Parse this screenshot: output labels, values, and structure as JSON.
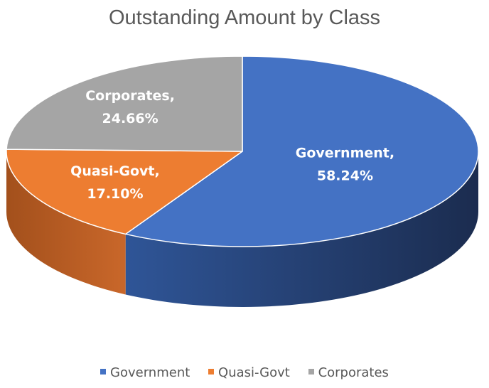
{
  "chart_data": {
    "type": "pie",
    "title": "Outstanding Amount by Class",
    "categories": [
      "Government",
      "Quasi-Govt",
      "Corporates"
    ],
    "values": [
      58.24,
      17.1,
      24.66
    ],
    "data_labels": [
      [
        "Government,",
        "58.24%"
      ],
      [
        "Quasi-Govt,",
        "17.10%"
      ],
      [
        "Corporates,",
        "24.66%"
      ]
    ],
    "legend": {
      "position": "bottom",
      "entries": [
        "Government",
        "Quasi-Govt",
        "Corporates"
      ]
    },
    "colors": [
      "#4472C4",
      "#ED7D31",
      "#A5A5A5"
    ],
    "style": "3d"
  }
}
